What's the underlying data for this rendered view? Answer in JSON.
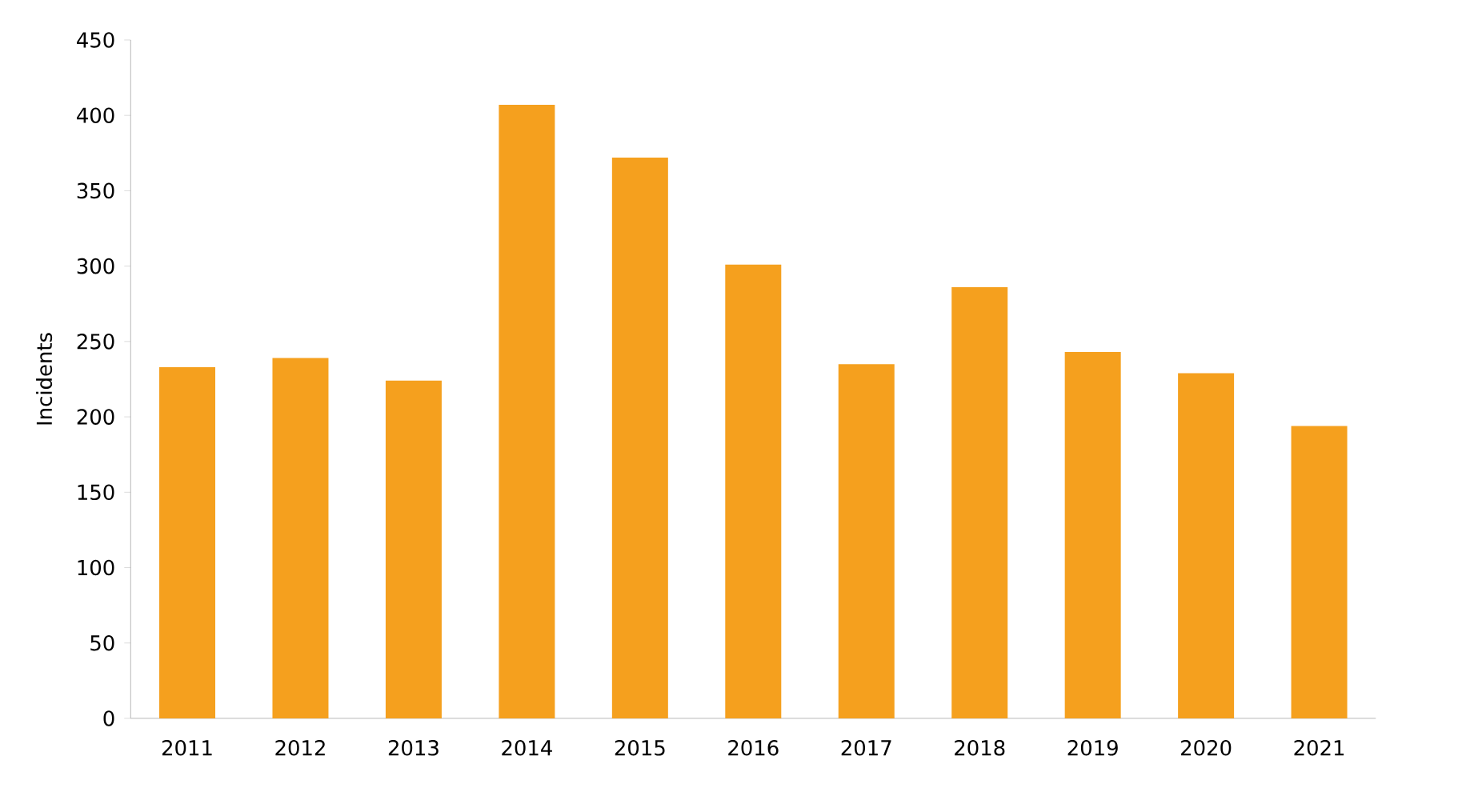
{
  "chart_data": {
    "type": "bar",
    "ylabel": "Incidents",
    "categories": [
      "2011",
      "2012",
      "2013",
      "2014",
      "2015",
      "2016",
      "2017",
      "2018",
      "2019",
      "2020",
      "2021"
    ],
    "values": [
      233,
      239,
      224,
      407,
      372,
      301,
      235,
      286,
      243,
      229,
      194
    ],
    "color": "#f5a01e",
    "ylim": [
      0,
      450
    ],
    "yticks": [
      0,
      50,
      100,
      150,
      200,
      250,
      300,
      350,
      400,
      450
    ]
  }
}
